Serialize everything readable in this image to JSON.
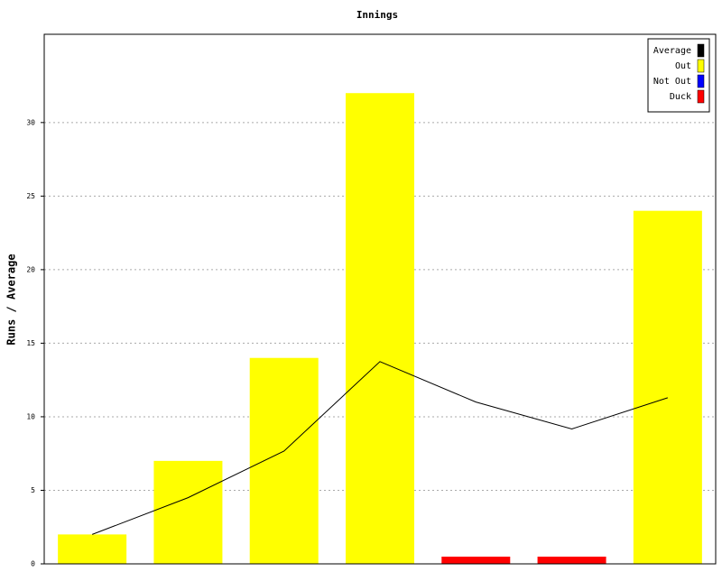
{
  "chart_data": {
    "type": "bar",
    "title": "Innings",
    "y_label": "Runs / Average",
    "series": [
      {
        "name": "Average",
        "type": "line",
        "color": "#000000",
        "values": [
          2,
          4.5,
          7.67,
          13.75,
          11,
          9.17,
          11.29
        ]
      },
      {
        "name": "Out",
        "color": "#ffff00",
        "values": [
          2,
          7,
          14,
          32,
          null,
          null,
          24
        ]
      },
      {
        "name": "Not Out",
        "color": "#0000ff",
        "values": [
          null,
          null,
          null,
          null,
          null,
          null,
          null
        ]
      },
      {
        "name": "Duck",
        "color": "#ff0000",
        "values": [
          null,
          null,
          null,
          null,
          0,
          0,
          null
        ]
      }
    ],
    "ylim": [
      0,
      36
    ],
    "yticks": [
      0,
      5,
      10,
      15,
      20,
      25,
      30
    ],
    "grid": true,
    "legend": "top-right"
  }
}
